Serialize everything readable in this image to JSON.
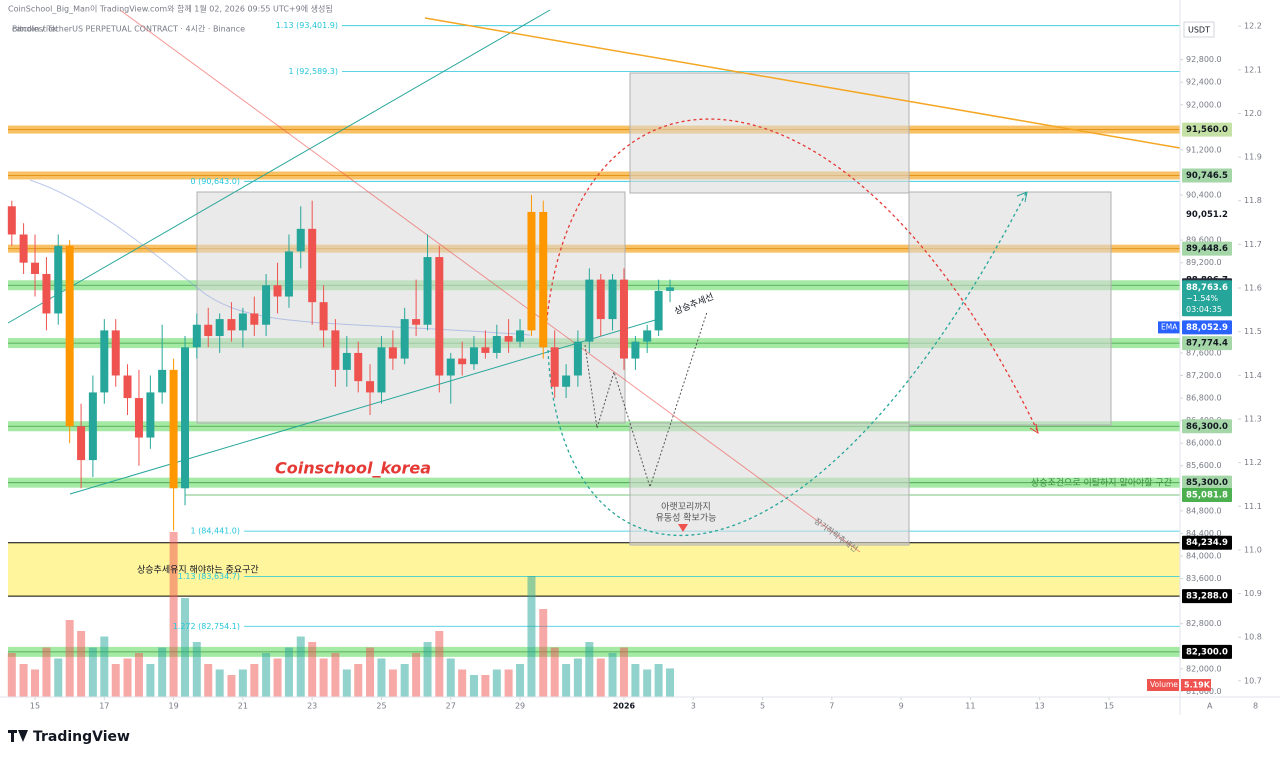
{
  "header": {
    "credit": "CoinSchool_Big_Man이 TradingView.com와 함께 1월 02, 2026 09:55 UTC+9에 생성됨",
    "symbol": "Bitcoin / TetherUS PERPETUAL CONTRACT · 4시간 · Binance",
    "currency": "USDT",
    "brand": "TradingView",
    "scale_mode": "A",
    "log_toggle": "8"
  },
  "chart_data": {
    "type": "candlestick",
    "watermark": "Coinschool_korea",
    "annotations": {
      "uptrend": "상승추세선",
      "liquidity_line1": "아랫꼬리까지",
      "liquidity_line2": "유동성 확보가능",
      "long_downtrend": "장기하락추세선",
      "keep_zone": "상승조건으로 이탈하지 말아야할 구간",
      "key_zone": "상승추세유지 해야하는 중요구간"
    },
    "xlim": [
      -0.78,
      33.05
    ],
    "xticks": [
      {
        "value": 0,
        "label": "15"
      },
      {
        "value": 2,
        "label": "17"
      },
      {
        "value": 4,
        "label": "19"
      },
      {
        "value": 6,
        "label": "21"
      },
      {
        "value": 8,
        "label": "23"
      },
      {
        "value": 10,
        "label": "25"
      },
      {
        "value": 12,
        "label": "27"
      },
      {
        "value": 14,
        "label": "29"
      },
      {
        "value": 17,
        "label": "2026"
      },
      {
        "value": 19,
        "label": "3"
      },
      {
        "value": 21,
        "label": "5"
      },
      {
        "value": 23,
        "label": "7"
      },
      {
        "value": 25,
        "label": "9"
      },
      {
        "value": 27,
        "label": "11"
      },
      {
        "value": 29,
        "label": "13"
      },
      {
        "value": 31,
        "label": "15"
      }
    ],
    "ylim": [
      81500,
      93680
    ],
    "yticks": [
      {
        "value": 92800,
        "label": "92,800.0"
      },
      {
        "value": 92400,
        "label": "92,400.0"
      },
      {
        "value": 92000,
        "label": "92,000.0"
      },
      {
        "value": 91200,
        "label": "91,200.0"
      },
      {
        "value": 90400,
        "label": "90,400.0"
      },
      {
        "value": 89600,
        "label": "89,600.0"
      },
      {
        "value": 89200,
        "label": "89,200.0"
      },
      {
        "value": 87600,
        "label": "87,600.0"
      },
      {
        "value": 87200,
        "label": "87,200.0"
      },
      {
        "value": 86800,
        "label": "86,800.0"
      },
      {
        "value": 86400,
        "label": "86,400.0"
      },
      {
        "value": 86000,
        "label": "86,000.0"
      },
      {
        "value": 85600,
        "label": "85,600.0"
      },
      {
        "value": 84800,
        "label": "84,800.0"
      },
      {
        "value": 84400,
        "label": "84,400.0"
      },
      {
        "value": 84000,
        "label": "84,000.0"
      },
      {
        "value": 83600,
        "label": "83,600.0"
      },
      {
        "value": 82800,
        "label": "82,800.0"
      },
      {
        "value": 82000,
        "label": "82,000.0"
      },
      {
        "value": 81600,
        "label": "81,600.0"
      }
    ],
    "y2lim": [
      10.663,
      12.237
    ],
    "y2ticks": [
      {
        "value": 12.2,
        "label": "12.2"
      },
      {
        "value": 12.1,
        "label": "12.1"
      },
      {
        "value": 12,
        "label": "12.0"
      },
      {
        "value": 11.9,
        "label": "11.9"
      },
      {
        "value": 11.8,
        "label": "11.8"
      },
      {
        "value": 11.7,
        "label": "11.7"
      },
      {
        "value": 11.6,
        "label": "11.6"
      },
      {
        "value": 11.5,
        "label": "11.5"
      },
      {
        "value": 11.4,
        "label": "11.4"
      },
      {
        "value": 11.3,
        "label": "11.3"
      },
      {
        "value": 11.2,
        "label": "11.2"
      },
      {
        "value": 11.1,
        "label": "11.1"
      },
      {
        "value": 11,
        "label": "11.0"
      },
      {
        "value": 10.9,
        "label": "10.9"
      },
      {
        "value": 10.8,
        "label": "10.8"
      },
      {
        "value": 10.7,
        "label": "10.7"
      }
    ],
    "up_color": "#26a69a",
    "down_color": "#ef5350",
    "highlight_color": "#ff9800",
    "highlight": [
      5,
      14,
      45,
      46
    ],
    "x": [
      -0.67,
      -0.33,
      0,
      0.33,
      0.67,
      1,
      1.33,
      1.67,
      2,
      2.33,
      2.67,
      3,
      3.33,
      3.67,
      4,
      4.33,
      4.67,
      5,
      5.33,
      5.67,
      6,
      6.33,
      6.67,
      7,
      7.33,
      7.67,
      8,
      8.33,
      8.67,
      9,
      9.33,
      9.67,
      10,
      10.33,
      10.67,
      11,
      11.33,
      11.67,
      12,
      12.33,
      12.67,
      13,
      13.33,
      13.67,
      14,
      14.33,
      14.67,
      15,
      15.33,
      15.67,
      16,
      16.33,
      16.67,
      17,
      17.33,
      17.67,
      18,
      18.33
    ],
    "open": [
      90200,
      89700,
      89200,
      89000,
      88300,
      89500,
      86300,
      85700,
      86900,
      88000,
      87200,
      86800,
      86100,
      86900,
      87300,
      85200,
      87700,
      88100,
      87900,
      88200,
      88000,
      88300,
      88100,
      88800,
      88600,
      89400,
      89800,
      88500,
      88000,
      87300,
      87600,
      87100,
      86900,
      87700,
      87500,
      88200,
      88100,
      89300,
      87200,
      87500,
      87400,
      87700,
      87600,
      87900,
      87800,
      88000,
      90100,
      87700,
      87000,
      87200,
      87800,
      88900,
      88200,
      88900,
      87500,
      87800,
      88000,
      88700
    ],
    "high": [
      90300,
      89900,
      89700,
      89300,
      89700,
      89600,
      86700,
      87200,
      88200,
      88200,
      87400,
      87300,
      87200,
      88100,
      87500,
      87900,
      88300,
      88400,
      88300,
      88500,
      88400,
      88600,
      89000,
      89200,
      89700,
      90200,
      90300,
      88800,
      88200,
      87900,
      87800,
      87400,
      87900,
      88000,
      88400,
      88900,
      89700,
      89500,
      87600,
      87800,
      87900,
      88000,
      88100,
      88200,
      88200,
      90400,
      90300,
      88000,
      87400,
      88000,
      89100,
      89000,
      89000,
      89100,
      87900,
      88100,
      88900,
      88900
    ],
    "low": [
      89500,
      89000,
      88600,
      88000,
      88100,
      86000,
      85200,
      85400,
      86700,
      87000,
      86500,
      85600,
      85900,
      86700,
      84450,
      84900,
      87500,
      87700,
      87600,
      87800,
      87700,
      87900,
      87900,
      88300,
      88400,
      89100,
      88100,
      87700,
      87000,
      87000,
      86900,
      86500,
      86700,
      87300,
      87400,
      87900,
      88000,
      86900,
      86700,
      87200,
      87300,
      87500,
      87500,
      87600,
      87700,
      87900,
      87500,
      86800,
      86800,
      87000,
      87600,
      87900,
      88000,
      87300,
      87300,
      87600,
      87900,
      88500
    ],
    "close": [
      89700,
      89200,
      89000,
      88300,
      89500,
      86300,
      85700,
      86900,
      88000,
      87200,
      86800,
      86100,
      86900,
      87300,
      85200,
      87700,
      88100,
      87900,
      88200,
      88000,
      88300,
      88100,
      88800,
      88600,
      89400,
      89800,
      88500,
      88000,
      87300,
      87600,
      87100,
      86900,
      87700,
      87500,
      88200,
      88100,
      89300,
      87200,
      87500,
      87400,
      87700,
      87600,
      87900,
      87800,
      88000,
      90100,
      87700,
      87000,
      87200,
      87800,
      88900,
      88200,
      88900,
      87500,
      87800,
      88000,
      88700,
      88763.6
    ],
    "volume": [
      8,
      6,
      5,
      9,
      7,
      14,
      12,
      9,
      11,
      6,
      7,
      8,
      6,
      9,
      30,
      18,
      10,
      6,
      5,
      4,
      5,
      6,
      8,
      7,
      9,
      11,
      10,
      7,
      8,
      5,
      6,
      9,
      7,
      5,
      6,
      8,
      10,
      12,
      7,
      5,
      4,
      4,
      5,
      5,
      6,
      22,
      16,
      9,
      6,
      7,
      10,
      7,
      8,
      9,
      6,
      5,
      6,
      5.19
    ],
    "volume_name": "Volume",
    "volume_label": "5.19K",
    "fib_levels": [
      {
        "value": 93401.9,
        "label": "1.13 (93,401.9)"
      },
      {
        "value": 92589.3,
        "label": "1 (92,589.3)"
      },
      {
        "value": 90643,
        "label": "0 (90,643.0)"
      },
      {
        "value": 84441,
        "label": "1 (84,441.0)"
      },
      {
        "value": 83634.7,
        "label": "1.13 (83,634.7)"
      },
      {
        "value": 82754.1,
        "label": "1.272 (82,754.1)"
      }
    ],
    "fib_color": "#26c6da",
    "price_tags": [
      {
        "value": 91560,
        "label": "91,560.0",
        "bg": "#c5e1a5",
        "fg": "#131722",
        "band": "#f5a623"
      },
      {
        "value": 90746.5,
        "label": "90,746.5",
        "bg": "#a5d6a7",
        "fg": "#131722",
        "band": "#f5a623"
      },
      {
        "value": 90051.2,
        "label": "90,051.2",
        "bg": null,
        "fg": "#131722"
      },
      {
        "value": 89448.6,
        "label": "89,448.6",
        "bg": "#a5d6a7",
        "fg": "#131722",
        "band": "#f5a623"
      },
      {
        "value": 88896.7,
        "label": "88,896.7",
        "bg": null,
        "fg": "#131722"
      },
      {
        "value": 88800,
        "label": "88,800.0",
        "bg": "#2a2e39",
        "fg": "#ffffff",
        "band": "#7ee07e"
      },
      {
        "value": 88763.6,
        "label": "88,763.6",
        "bg": "#26a69a",
        "fg": "#ffffff",
        "change": "−1.54%",
        "countdown": "03:04:35"
      },
      {
        "value": 88052.9,
        "label": "88,052.9",
        "bg": "#2962ff",
        "fg": "#ffffff",
        "name": "EMA"
      },
      {
        "value": 87774.4,
        "label": "87,774.4",
        "bg": "#a5d6a7",
        "fg": "#131722",
        "band": "#7ee07e"
      },
      {
        "value": 86300,
        "label": "86,300.0",
        "bg": "#a5d6a7",
        "fg": "#131722",
        "band": "#7ee07e"
      },
      {
        "value": 85300,
        "label": "85,300.0",
        "bg": "#a5d6a7",
        "fg": "#131722",
        "band": "#7ee07e"
      },
      {
        "value": 85081.8,
        "label": "85,081.8",
        "bg": "#4caf50",
        "fg": "#ffffff",
        "line": "#4caf50"
      },
      {
        "value": 84234.9,
        "label": "84,234.9",
        "bg": "#000000",
        "fg": "#ffffff",
        "zone": "#fff59d"
      },
      {
        "value": 83288,
        "label": "83,288.0",
        "bg": "#000000",
        "fg": "#ffffff",
        "zone": "#fff59d"
      },
      {
        "value": 82300,
        "label": "82,300.0",
        "bg": "#000000",
        "fg": "#ffffff",
        "band": "#7ee07e"
      }
    ]
  }
}
